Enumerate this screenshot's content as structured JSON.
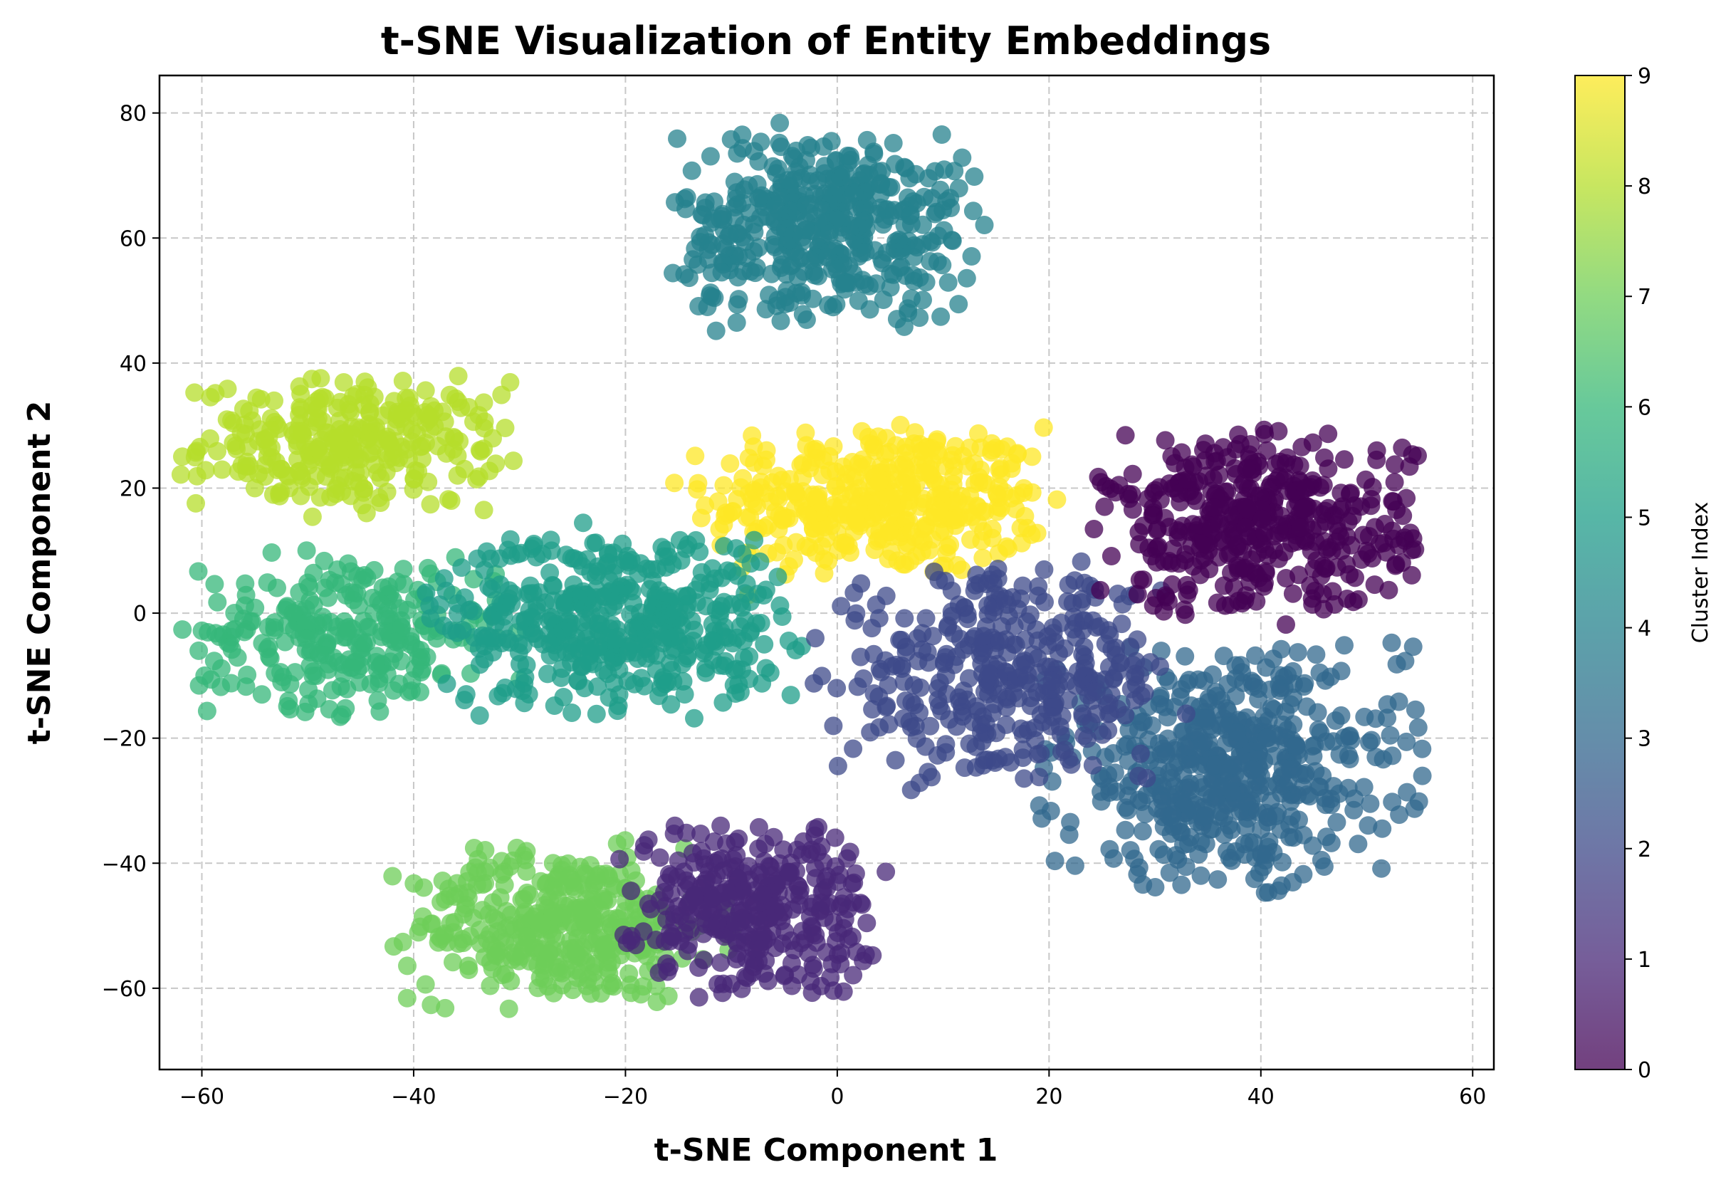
{
  "chart_data": {
    "type": "scatter",
    "title": "t-SNE Visualization of Entity Embeddings",
    "xlabel": "t-SNE Component 1",
    "ylabel": "t-SNE Component 2",
    "xlim": [
      -64,
      62
    ],
    "ylim": [
      -73,
      86
    ],
    "xticks": [
      -60,
      -40,
      -20,
      0,
      20,
      40,
      60
    ],
    "yticks": [
      -60,
      -40,
      -20,
      0,
      20,
      40,
      60,
      80
    ],
    "xtick_labels": [
      "−60",
      "−40",
      "−20",
      "0",
      "20",
      "40",
      "60"
    ],
    "ytick_labels": [
      "−60",
      "−40",
      "−20",
      "0",
      "20",
      "40",
      "60",
      "80"
    ],
    "grid": true,
    "colorbar": {
      "label": "Cluster Index",
      "range": [
        0,
        9
      ],
      "ticks": [
        0,
        1,
        2,
        3,
        4,
        5,
        6,
        7,
        8,
        9
      ],
      "tick_labels": [
        "0",
        "1",
        "2",
        "3",
        "4",
        "5",
        "6",
        "7",
        "8",
        "9"
      ],
      "colormap": "viridis",
      "colors": [
        "#440154",
        "#482878",
        "#3e4989",
        "#31688e",
        "#26828e",
        "#1f9e89",
        "#35b779",
        "#6ece58",
        "#b5de2b",
        "#fde725"
      ]
    },
    "marker_alpha": 0.75,
    "clusters": [
      {
        "index": 0,
        "center": [
          40,
          14
        ],
        "spread": [
          7,
          7
        ],
        "count": 420
      },
      {
        "index": 1,
        "center": [
          -8,
          -47
        ],
        "spread": [
          5.5,
          6.5
        ],
        "count": 330
      },
      {
        "index": 2,
        "center": [
          16,
          -10
        ],
        "spread": [
          8,
          8
        ],
        "count": 380
      },
      {
        "index": 3,
        "center": [
          37,
          -25
        ],
        "spread": [
          8,
          9
        ],
        "count": 520
      },
      {
        "index": 4,
        "center": [
          -1,
          62
        ],
        "spread": [
          7,
          7.5
        ],
        "count": 440
      },
      {
        "index": 5,
        "center": [
          -21,
          -1
        ],
        "spread": [
          8,
          7
        ],
        "count": 470
      },
      {
        "index": 6,
        "center": [
          -46,
          -3
        ],
        "spread": [
          7,
          6
        ],
        "count": 280
      },
      {
        "index": 7,
        "center": [
          -26,
          -50
        ],
        "spread": [
          7,
          6
        ],
        "count": 380
      },
      {
        "index": 8,
        "center": [
          -46,
          27
        ],
        "spread": [
          7,
          5
        ],
        "count": 300
      },
      {
        "index": 9,
        "center": [
          4,
          18
        ],
        "spread": [
          8,
          6
        ],
        "count": 420
      }
    ]
  }
}
